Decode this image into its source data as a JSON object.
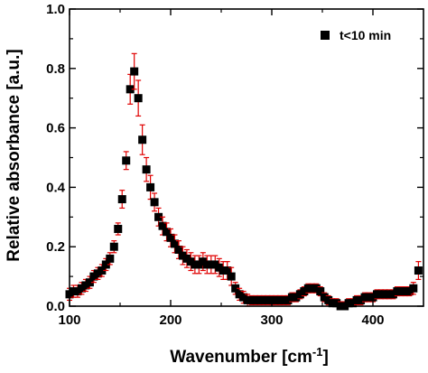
{
  "chart_data": {
    "type": "scatter",
    "xlabel": "Wavenumber [cm",
    "xlabel_sup": "-1",
    "xlabel_end": "]",
    "ylabel": "Relative absorbance [a.u.]",
    "xlim": [
      100,
      450
    ],
    "ylim": [
      0,
      1.0
    ],
    "xticks": [
      100,
      200,
      300,
      400
    ],
    "yticks": [
      0.0,
      0.2,
      0.4,
      0.6,
      0.8,
      1.0
    ],
    "ytick_labels": [
      "0.0",
      "0.2",
      "0.4",
      "0.6",
      "0.8",
      "1.0"
    ],
    "grid": false,
    "legend_position": "top-right",
    "marker_color": "#000000",
    "errorbar_color": "#e00000",
    "series": [
      {
        "name": "t<10 min",
        "points": [
          [
            100,
            0.04,
            0.02
          ],
          [
            104,
            0.05,
            0.02
          ],
          [
            108,
            0.05,
            0.02
          ],
          [
            112,
            0.06,
            0.02
          ],
          [
            116,
            0.07,
            0.02
          ],
          [
            120,
            0.08,
            0.02
          ],
          [
            124,
            0.1,
            0.02
          ],
          [
            128,
            0.11,
            0.02
          ],
          [
            132,
            0.12,
            0.02
          ],
          [
            136,
            0.14,
            0.02
          ],
          [
            140,
            0.16,
            0.02
          ],
          [
            144,
            0.2,
            0.02
          ],
          [
            148,
            0.26,
            0.02
          ],
          [
            152,
            0.36,
            0.03
          ],
          [
            156,
            0.49,
            0.03
          ],
          [
            160,
            0.73,
            0.05
          ],
          [
            164,
            0.79,
            0.06
          ],
          [
            168,
            0.7,
            0.06
          ],
          [
            172,
            0.56,
            0.05
          ],
          [
            176,
            0.46,
            0.04
          ],
          [
            180,
            0.4,
            0.04
          ],
          [
            184,
            0.35,
            0.03
          ],
          [
            188,
            0.3,
            0.03
          ],
          [
            192,
            0.27,
            0.03
          ],
          [
            196,
            0.25,
            0.03
          ],
          [
            200,
            0.23,
            0.03
          ],
          [
            204,
            0.21,
            0.03
          ],
          [
            208,
            0.19,
            0.03
          ],
          [
            212,
            0.17,
            0.03
          ],
          [
            216,
            0.16,
            0.03
          ],
          [
            220,
            0.15,
            0.03
          ],
          [
            224,
            0.14,
            0.03
          ],
          [
            228,
            0.14,
            0.03
          ],
          [
            232,
            0.15,
            0.03
          ],
          [
            236,
            0.14,
            0.03
          ],
          [
            240,
            0.14,
            0.03
          ],
          [
            244,
            0.14,
            0.03
          ],
          [
            248,
            0.13,
            0.03
          ],
          [
            252,
            0.12,
            0.03
          ],
          [
            256,
            0.12,
            0.03
          ],
          [
            260,
            0.1,
            0.03
          ],
          [
            264,
            0.06,
            0.02
          ],
          [
            268,
            0.04,
            0.02
          ],
          [
            272,
            0.03,
            0.02
          ],
          [
            276,
            0.02,
            0.02
          ],
          [
            280,
            0.02,
            0.015
          ],
          [
            284,
            0.02,
            0.015
          ],
          [
            288,
            0.02,
            0.015
          ],
          [
            292,
            0.02,
            0.015
          ],
          [
            296,
            0.02,
            0.015
          ],
          [
            300,
            0.02,
            0.015
          ],
          [
            304,
            0.02,
            0.015
          ],
          [
            308,
            0.02,
            0.015
          ],
          [
            312,
            0.02,
            0.015
          ],
          [
            316,
            0.02,
            0.015
          ],
          [
            320,
            0.03,
            0.015
          ],
          [
            324,
            0.03,
            0.015
          ],
          [
            328,
            0.04,
            0.015
          ],
          [
            332,
            0.05,
            0.015
          ],
          [
            336,
            0.06,
            0.015
          ],
          [
            340,
            0.06,
            0.015
          ],
          [
            344,
            0.06,
            0.015
          ],
          [
            348,
            0.05,
            0.015
          ],
          [
            352,
            0.03,
            0.015
          ],
          [
            356,
            0.02,
            0.015
          ],
          [
            360,
            0.01,
            0.015
          ],
          [
            364,
            0.01,
            0.015
          ],
          [
            368,
            0.0,
            0.015
          ],
          [
            372,
            0.0,
            0.015
          ],
          [
            376,
            0.01,
            0.015
          ],
          [
            380,
            0.01,
            0.015
          ],
          [
            384,
            0.02,
            0.015
          ],
          [
            388,
            0.02,
            0.015
          ],
          [
            392,
            0.03,
            0.015
          ],
          [
            396,
            0.03,
            0.015
          ],
          [
            400,
            0.03,
            0.015
          ],
          [
            404,
            0.04,
            0.015
          ],
          [
            408,
            0.04,
            0.015
          ],
          [
            412,
            0.04,
            0.015
          ],
          [
            416,
            0.04,
            0.015
          ],
          [
            420,
            0.04,
            0.015
          ],
          [
            424,
            0.05,
            0.015
          ],
          [
            428,
            0.05,
            0.015
          ],
          [
            432,
            0.05,
            0.015
          ],
          [
            436,
            0.05,
            0.015
          ],
          [
            440,
            0.06,
            0.02
          ],
          [
            445,
            0.12,
            0.03
          ]
        ]
      }
    ]
  }
}
